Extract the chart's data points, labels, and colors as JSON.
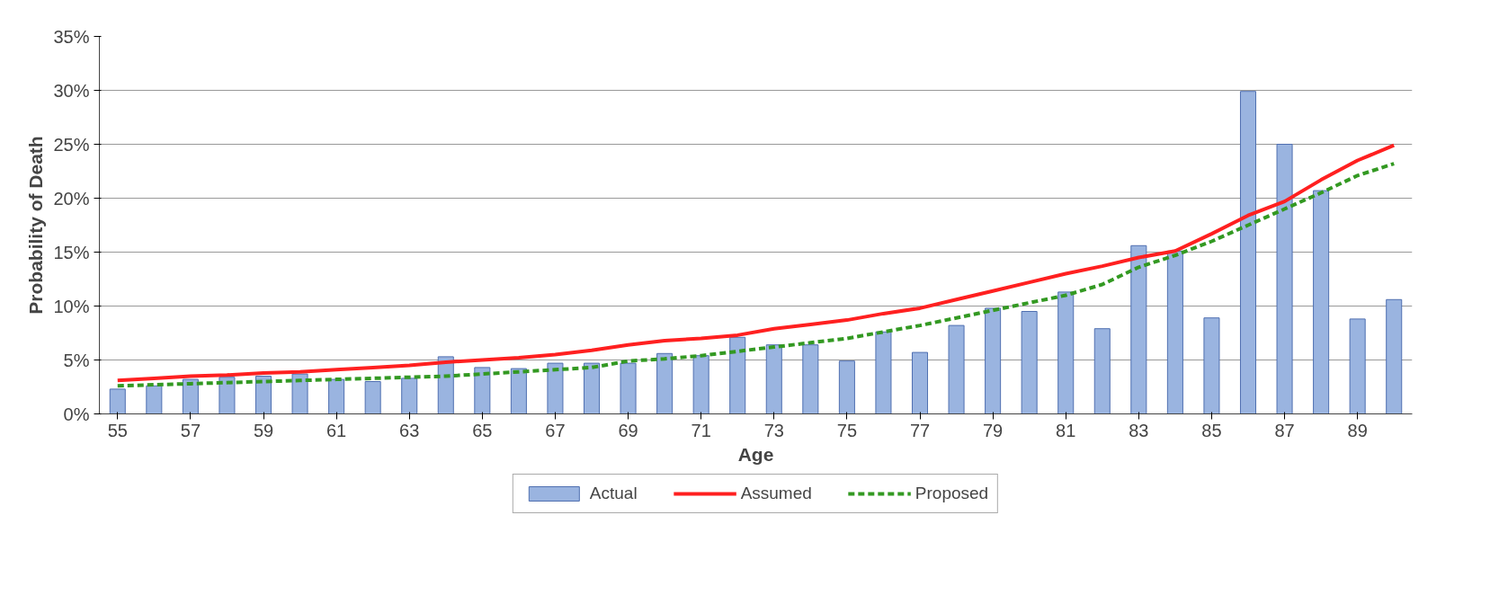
{
  "chart_data": {
    "type": "bar",
    "xlabel": "Age",
    "ylabel": "Probability of Death",
    "categories": [
      "55",
      null,
      "57",
      null,
      "59",
      null,
      "61",
      null,
      "63",
      null,
      "65",
      null,
      "67",
      null,
      "69",
      null,
      "71",
      null,
      "73",
      null,
      "75",
      null,
      "77",
      null,
      "79",
      null,
      "81",
      null,
      "83",
      null,
      "85",
      null,
      "87",
      null,
      "89",
      null
    ],
    "series": [
      {
        "name": "Actual",
        "color": "#9ab4e0",
        "values": [
          2.3,
          2.6,
          3.2,
          3.4,
          3.5,
          3.7,
          3.2,
          3.0,
          3.3,
          5.3,
          4.3,
          4.2,
          4.7,
          4.7,
          4.7,
          5.6,
          5.4,
          7.1,
          6.4,
          6.4,
          4.9,
          7.6,
          5.7,
          8.2,
          9.8,
          9.5,
          11.3,
          7.9,
          15.6,
          15.1,
          8.9,
          29.9,
          25.0,
          20.7,
          8.8,
          10.6
        ]
      },
      {
        "name": "Assumed",
        "type": "line",
        "color": "#ff2020",
        "line_style": "solid",
        "values": [
          3.1,
          3.3,
          3.5,
          3.6,
          3.8,
          3.9,
          4.1,
          4.3,
          4.5,
          4.8,
          5.0,
          5.2,
          5.5,
          5.9,
          6.4,
          6.8,
          7.0,
          7.3,
          7.9,
          8.3,
          8.7,
          9.3,
          9.8,
          10.6,
          11.4,
          12.2,
          13.0,
          13.7,
          14.5,
          15.1,
          16.7,
          18.4,
          19.7,
          21.7,
          23.5,
          24.9
        ]
      },
      {
        "name": "Proposed",
        "type": "line",
        "color": "#339922",
        "line_style": "dashed",
        "values": [
          2.6,
          2.7,
          2.8,
          2.9,
          3.0,
          3.1,
          3.2,
          3.3,
          3.4,
          3.5,
          3.7,
          3.9,
          4.1,
          4.3,
          4.9,
          5.1,
          5.4,
          5.8,
          6.2,
          6.6,
          7.0,
          7.6,
          8.2,
          8.9,
          9.6,
          10.3,
          11.0,
          12.0,
          13.6,
          14.7,
          16.0,
          17.5,
          19.0,
          20.5,
          22.1,
          23.2
        ]
      }
    ],
    "ylim": [
      0,
      35
    ],
    "yticks": [
      {
        "value": 0,
        "label": "0%"
      },
      {
        "value": 5,
        "label": "5%"
      },
      {
        "value": 10,
        "label": "10%"
      },
      {
        "value": 15,
        "label": "15%"
      },
      {
        "value": 20,
        "label": "20%"
      },
      {
        "value": 25,
        "label": "25%"
      },
      {
        "value": 30,
        "label": "30%"
      },
      {
        "value": 35,
        "label": "35%"
      }
    ],
    "grid": "y",
    "legend": "bottom"
  }
}
